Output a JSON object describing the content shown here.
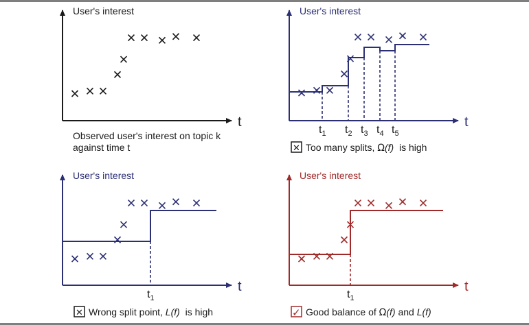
{
  "colors": {
    "black": "#1a1a1a",
    "navy": "#2b2f73",
    "red": "#a02a2a",
    "frame": "#7f7f7f"
  },
  "panels": [
    {
      "id": "observed",
      "ylabel": "User's interest",
      "xlabel": "t",
      "caption_line1": "Observed user's interest on topic k",
      "caption_line2": "against time t",
      "points": [
        [
          0,
          5
        ],
        [
          1,
          4.8
        ],
        [
          2,
          4.8
        ],
        [
          3,
          3.5
        ],
        [
          4,
          2.3
        ],
        [
          5,
          0.6
        ],
        [
          6,
          0.6
        ],
        [
          7,
          0.8
        ],
        [
          8,
          0.5
        ],
        [
          9,
          0.6
        ]
      ]
    },
    {
      "id": "too-many-splits",
      "ylabel": "User's interest",
      "xlabel": "t",
      "split_labels": [
        {
          "base": "t",
          "sub": "1"
        },
        {
          "base": "t",
          "sub": "2"
        },
        {
          "base": "t",
          "sub": "3"
        },
        {
          "base": "t",
          "sub": "4"
        },
        {
          "base": "t",
          "sub": "5"
        }
      ],
      "checkbox_mark": "✕",
      "caption_prefix": "Too many splits, ",
      "caption_symbol": "Ω",
      "caption_arg": "(f)",
      "caption_suffix": "  is high"
    },
    {
      "id": "wrong-split",
      "ylabel": "User's interest",
      "xlabel": "t",
      "split_labels": [
        {
          "base": "t",
          "sub": "1"
        }
      ],
      "checkbox_mark": "✕",
      "caption_prefix": "Wrong split point, ",
      "caption_symbol": "L",
      "caption_arg": "(f)",
      "caption_suffix": "  is high"
    },
    {
      "id": "good-balance",
      "ylabel": "User's interest",
      "xlabel": "t",
      "split_labels": [
        {
          "base": "t",
          "sub": "1"
        }
      ],
      "checkbox_mark": "✓",
      "caption_prefix": "Good balance of ",
      "caption_symbol": "Ω",
      "caption_arg": "(f)",
      "caption_mid": " and ",
      "caption_symbol2": "L",
      "caption_arg2": "(f)"
    }
  ]
}
